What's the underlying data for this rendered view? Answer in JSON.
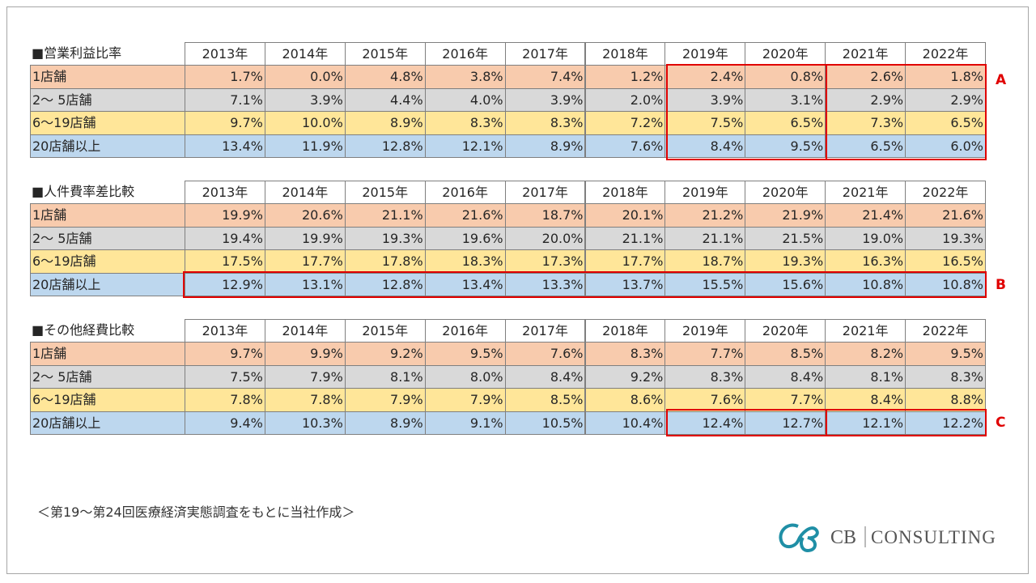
{
  "tables": [
    {
      "title": "■営業利益比率",
      "headers": [
        "2013年",
        "2014年",
        "2015年",
        "2016年",
        "2017年",
        "2018年",
        "2019年",
        "2020年",
        "2021年",
        "2022年"
      ],
      "rows": [
        {
          "label": "1店舗",
          "values": [
            "1.7%",
            "0.0%",
            "4.8%",
            "3.8%",
            "7.4%",
            "1.2%",
            "2.4%",
            "0.8%",
            "2.6%",
            "1.8%"
          ]
        },
        {
          "label": "2～ 5店舗",
          "values": [
            "7.1%",
            "3.9%",
            "4.4%",
            "4.0%",
            "3.9%",
            "2.0%",
            "3.9%",
            "3.1%",
            "2.9%",
            "2.9%"
          ]
        },
        {
          "label": "6～19店舗",
          "values": [
            "9.7%",
            "10.0%",
            "8.9%",
            "8.3%",
            "8.3%",
            "7.2%",
            "7.5%",
            "6.5%",
            "7.3%",
            "6.5%"
          ]
        },
        {
          "label": "20店舗以上",
          "values": [
            "13.4%",
            "11.9%",
            "12.8%",
            "12.1%",
            "8.9%",
            "7.6%",
            "8.4%",
            "9.5%",
            "6.5%",
            "6.0%"
          ]
        }
      ]
    },
    {
      "title": "■人件費率差比較",
      "headers": [
        "2013年",
        "2014年",
        "2015年",
        "2016年",
        "2017年",
        "2018年",
        "2019年",
        "2020年",
        "2021年",
        "2022年"
      ],
      "rows": [
        {
          "label": "1店舗",
          "values": [
            "19.9%",
            "20.6%",
            "21.1%",
            "21.6%",
            "18.7%",
            "20.1%",
            "21.2%",
            "21.9%",
            "21.4%",
            "21.6%"
          ]
        },
        {
          "label": "2～ 5店舗",
          "values": [
            "19.4%",
            "19.9%",
            "19.3%",
            "19.6%",
            "20.0%",
            "21.1%",
            "21.1%",
            "21.5%",
            "19.0%",
            "19.3%"
          ]
        },
        {
          "label": "6～19店舗",
          "values": [
            "17.5%",
            "17.7%",
            "17.8%",
            "18.3%",
            "17.3%",
            "17.7%",
            "18.7%",
            "19.3%",
            "16.3%",
            "16.5%"
          ]
        },
        {
          "label": "20店舗以上",
          "values": [
            "12.9%",
            "13.1%",
            "12.8%",
            "13.4%",
            "13.3%",
            "13.7%",
            "15.5%",
            "15.6%",
            "10.8%",
            "10.8%"
          ]
        }
      ]
    },
    {
      "title": "■その他経費比較",
      "headers": [
        "2013年",
        "2014年",
        "2015年",
        "2016年",
        "2017年",
        "2018年",
        "2019年",
        "2020年",
        "2021年",
        "2022年"
      ],
      "rows": [
        {
          "label": "1店舗",
          "values": [
            "9.7%",
            "9.9%",
            "9.2%",
            "9.5%",
            "7.6%",
            "8.3%",
            "7.7%",
            "8.5%",
            "8.2%",
            "9.5%"
          ]
        },
        {
          "label": "2～ 5店舗",
          "values": [
            "7.5%",
            "7.9%",
            "8.1%",
            "8.0%",
            "8.4%",
            "9.2%",
            "8.3%",
            "8.4%",
            "8.1%",
            "8.3%"
          ]
        },
        {
          "label": "6～19店舗",
          "values": [
            "7.8%",
            "7.8%",
            "7.9%",
            "7.9%",
            "8.5%",
            "8.6%",
            "7.6%",
            "7.7%",
            "8.4%",
            "8.8%"
          ]
        },
        {
          "label": "20店舗以上",
          "values": [
            "9.4%",
            "10.3%",
            "8.9%",
            "9.1%",
            "10.5%",
            "10.4%",
            "12.4%",
            "12.7%",
            "12.1%",
            "12.2%"
          ]
        }
      ]
    }
  ],
  "annotations": [
    "A",
    "B",
    "C"
  ],
  "footnote": "＜第19～第24回医療経済実態調査をもとに当社作成＞",
  "logo": {
    "mark": "CB",
    "name": "CONSULTING"
  }
}
